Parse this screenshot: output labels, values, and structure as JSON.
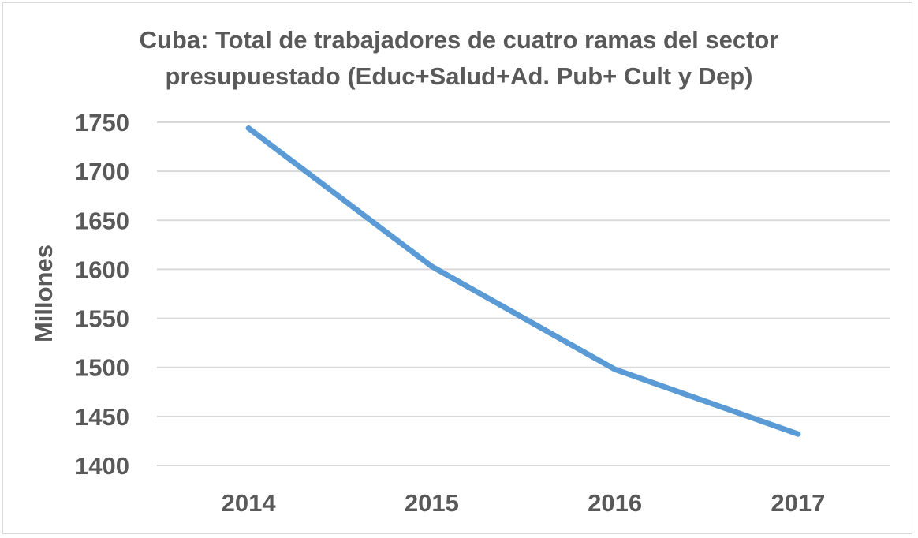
{
  "chart_data": {
    "type": "line",
    "title_lines": [
      "Cuba: Total de trabajadores de cuatro ramas del sector",
      "presupuestado (Educ+Salud+Ad. Pub+ Cult y Dep)"
    ],
    "xlabel": "",
    "ylabel": "Millones",
    "categories": [
      "2014",
      "2015",
      "2016",
      "2017"
    ],
    "series": [
      {
        "values": [
          1744,
          1603,
          1498,
          1432
        ]
      }
    ],
    "ylim": [
      1400,
      1750
    ],
    "yticks": [
      1400,
      1450,
      1500,
      1550,
      1600,
      1650,
      1700,
      1750
    ],
    "grid": true,
    "legend": "none",
    "colors": {
      "line": "#5b9bd5",
      "grid": "#d9d9d9",
      "text": "#595959"
    }
  }
}
